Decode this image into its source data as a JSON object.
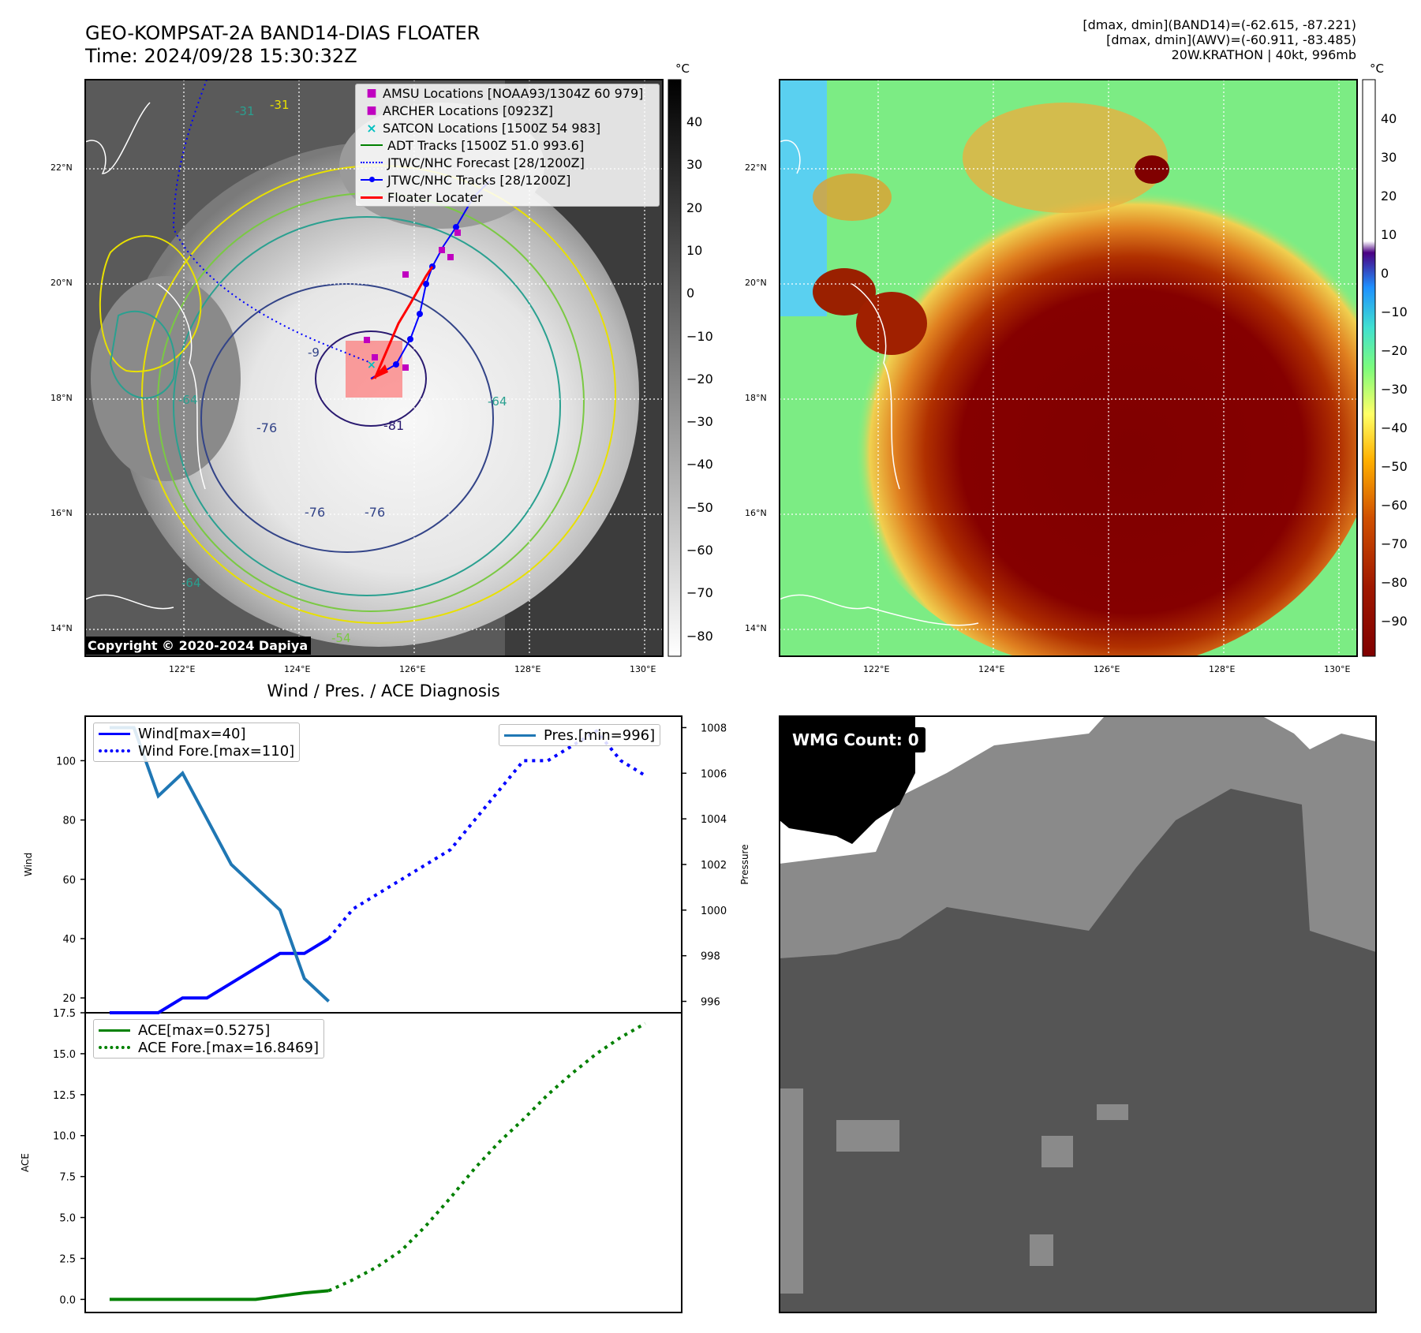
{
  "header": {
    "title_line1": "GEO-KOMPSAT-2A BAND14-DIAS FLOATER",
    "title_line2": "Time: 2024/09/28 15:30:32Z",
    "info_line1": "[dmax, dmin](BAND14)=(-62.615, -87.221)",
    "info_line2": "[dmax, dmin](AWV)=(-60.911, -83.485)",
    "info_line3": "20W.KRATHON | 40kt, 996mb"
  },
  "maps": {
    "lat_labels": [
      "22°N",
      "20°N",
      "18°N",
      "16°N",
      "14°N"
    ],
    "lon_labels": [
      "122°E",
      "124°E",
      "126°E",
      "128°E",
      "130°E"
    ],
    "copyright": "Copyright © 2020-2024 Dapiya",
    "contour_labels": [
      "-31",
      "-31",
      "-64",
      "-64",
      "-76",
      "-76",
      "-76",
      "-81",
      "-64",
      "-54",
      "-9"
    ],
    "legend": [
      {
        "label": "AMSU Locations [NOAA93/1304Z 60 979]",
        "marker": "square",
        "color": "#c000c0"
      },
      {
        "label": "ARCHER Locations [0923Z]",
        "marker": "square",
        "color": "#c000c0"
      },
      {
        "label": "SATCON Locations [1500Z 54 983]",
        "marker": "x",
        "color": "#00c0c0"
      },
      {
        "label": "ADT Tracks [1500Z 51.0 993.6]",
        "marker": "line",
        "color": "#008000"
      },
      {
        "label": "JTWC/NHC Forecast [28/1200Z]",
        "marker": "dotted",
        "color": "#0000ff"
      },
      {
        "label": "JTWC/NHC Tracks [28/1200Z]",
        "marker": "line-dot",
        "color": "#0000ff"
      },
      {
        "label": "Floater Locater",
        "marker": "line",
        "color": "#ff0000"
      }
    ],
    "colorbar_left": {
      "unit": "°C",
      "ticks": [
        "40",
        "30",
        "20",
        "10",
        "0",
        "−10",
        "−20",
        "−30",
        "−40",
        "−50",
        "−60",
        "−70",
        "−80"
      ]
    },
    "colorbar_right": {
      "unit": "°C",
      "ticks": [
        "40",
        "30",
        "20",
        "10",
        "0",
        "−10",
        "−20",
        "−30",
        "−40",
        "−50",
        "−60",
        "−70",
        "−80",
        "−90"
      ]
    }
  },
  "wmg": {
    "label": "WMG Count: 0"
  },
  "chart_data": [
    {
      "type": "line",
      "title": "Wind / Pres. / ACE Diagnosis",
      "ylabel": "Wind",
      "ylabel_right": "Pressure",
      "ylim": [
        15,
        115
      ],
      "ylim_right": [
        995.5,
        1008.5
      ],
      "yticks": [
        20,
        40,
        60,
        80,
        100
      ],
      "yticks_right": [
        996,
        998,
        1000,
        1002,
        1004,
        1006,
        1008
      ],
      "series": [
        {
          "name": "Wind[max=40]",
          "axis": "left",
          "style": "solid",
          "color": "#0000ff",
          "x": [
            0,
            1,
            2,
            3,
            4,
            5,
            6,
            7,
            8,
            9
          ],
          "values": [
            15,
            15,
            15,
            20,
            20,
            25,
            30,
            35,
            35,
            40
          ]
        },
        {
          "name": "Wind Fore.[max=110]",
          "axis": "left",
          "style": "dotted",
          "color": "#0000ff",
          "x": [
            9,
            10,
            11,
            12,
            13,
            14,
            15,
            16,
            17,
            18,
            19,
            20,
            21,
            22
          ],
          "values": [
            40,
            50,
            55,
            60,
            65,
            70,
            80,
            90,
            100,
            100,
            105,
            110,
            100,
            95
          ]
        },
        {
          "name": "Pres.[min=996]",
          "axis": "right",
          "style": "solid",
          "color": "#1f77b4",
          "x": [
            0,
            1,
            2,
            3,
            4,
            5,
            6,
            7,
            8,
            9
          ],
          "values": [
            1008,
            1008,
            1005,
            1006,
            1004,
            1002,
            1001,
            1000,
            997,
            996
          ]
        }
      ]
    },
    {
      "type": "line",
      "ylabel": "ACE",
      "ylim": [
        -0.8,
        17.5
      ],
      "yticks": [
        "0.0",
        "2.5",
        "5.0",
        "7.5",
        "10.0",
        "12.5",
        "15.0",
        "17.5"
      ],
      "series": [
        {
          "name": "ACE[max=0.5275]",
          "style": "solid",
          "color": "#008000",
          "x": [
            0,
            1,
            2,
            3,
            4,
            5,
            6,
            7,
            8,
            9
          ],
          "values": [
            0,
            0,
            0,
            0,
            0,
            0,
            0,
            0.2,
            0.4,
            0.5275
          ]
        },
        {
          "name": "ACE Fore.[max=16.8469]",
          "style": "dotted",
          "color": "#008000",
          "x": [
            9,
            10,
            11,
            12,
            13,
            14,
            15,
            16,
            17,
            18,
            19,
            20,
            21,
            22
          ],
          "values": [
            0.5275,
            1.2,
            2.0,
            3.0,
            4.5,
            6.2,
            8.0,
            9.6,
            11.0,
            12.5,
            13.8,
            15.0,
            16.0,
            16.8469
          ]
        }
      ]
    }
  ]
}
